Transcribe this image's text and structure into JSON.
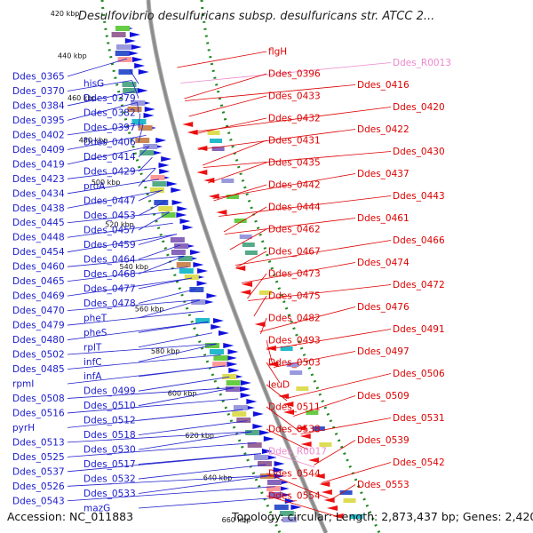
{
  "title": "Desulfovibrio desulfuricans subsp. desulfuricans str. ATCC 2...",
  "footer": {
    "accession": "Accession: NC_011883",
    "summary": "Topology: circular; Length: 2,873,437 bp; Genes: 2,420"
  },
  "colors": {
    "forward_label": "#1a1acc",
    "reverse_label": "#dd0000",
    "rna_label": "#ee88cc",
    "backbone": "#8c8c8c",
    "tick_dots": "#228822"
  },
  "ticks": [
    "420 kbp",
    "440 kbp",
    "460 kbp",
    "480 kbp",
    "500 kbp",
    "520 kbp",
    "540 kbp",
    "560 kbp",
    "580 kbp",
    "600 kbp",
    "620 kbp",
    "640 kbp",
    "660 kbp"
  ],
  "left_labels": [
    "Ddes_0365",
    "hisG",
    "Ddes_0370",
    "Ddes_0379",
    "Ddes_0384",
    "Ddes_0382",
    "Ddes_0395",
    "Ddes_0397",
    "Ddes_0402",
    "Ddes_0406",
    "Ddes_0409",
    "Ddes_0414",
    "Ddes_0419",
    "Ddes_0429",
    "Ddes_0423",
    "proA",
    "Ddes_0434",
    "Ddes_0447",
    "Ddes_0438",
    "Ddes_0453",
    "Ddes_0445",
    "Ddes_0457",
    "Ddes_0448",
    "Ddes_0459",
    "Ddes_0454",
    "Ddes_0464",
    "Ddes_0460",
    "Ddes_0468",
    "Ddes_0465",
    "Ddes_0477",
    "Ddes_0469",
    "Ddes_0478",
    "Ddes_0470",
    "pheT",
    "Ddes_0479",
    "pheS",
    "Ddes_0480",
    "rplT",
    "Ddes_0502",
    "infC",
    "Ddes_0485",
    "infA",
    "rpmI",
    "Ddes_0499",
    "Ddes_0508",
    "Ddes_0510",
    "Ddes_0516",
    "Ddes_0512",
    "pyrH",
    "Ddes_0518",
    "Ddes_0513",
    "Ddes_0530",
    "Ddes_0525",
    "Ddes_0517",
    "Ddes_0537",
    "Ddes_0532",
    "Ddes_0526",
    "Ddes_0533",
    "Ddes_0543",
    "mazG"
  ],
  "right_labels": [
    "flgH",
    "Ddes_R0013",
    "Ddes_0396",
    "Ddes_0416",
    "Ddes_0433",
    "Ddes_0420",
    "Ddes_0432",
    "Ddes_0422",
    "Ddes_0431",
    "Ddes_0430",
    "Ddes_0435",
    "Ddes_0437",
    "Ddes_0442",
    "Ddes_0443",
    "Ddes_0444",
    "Ddes_0461",
    "Ddes_0462",
    "Ddes_0466",
    "Ddes_0467",
    "Ddes_0474",
    "Ddes_0473",
    "Ddes_0472",
    "Ddes_0475",
    "Ddes_0476",
    "Ddes_0482",
    "Ddes_0491",
    "Ddes_0493",
    "Ddes_0497",
    "Ddes_0503",
    "Ddes_0506",
    "leuD",
    "Ddes_0509",
    "Ddes_0511",
    "Ddes_0531",
    "Ddes_0538",
    "Ddes_0539",
    "Ddes_R0017",
    "Ddes_0542",
    "Ddes_0544",
    "Ddes_0553",
    "Ddes_0554"
  ]
}
